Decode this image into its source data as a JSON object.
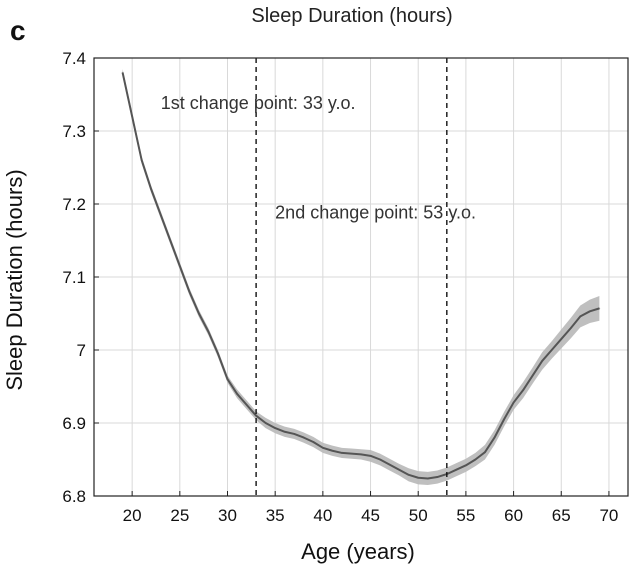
{
  "panel": {
    "letter": "c"
  },
  "chart_data": {
    "type": "line",
    "title": "Sleep Duration (hours)",
    "xlabel": "Age (years)",
    "ylabel": "Sleep Duration (hours)",
    "xlim": [
      16,
      72
    ],
    "ylim": [
      6.8,
      7.4
    ],
    "xticks": [
      20,
      25,
      30,
      35,
      40,
      45,
      50,
      55,
      60,
      65,
      70
    ],
    "xtick_labels": [
      "20",
      "25",
      "30",
      "35",
      "40",
      "45",
      "50",
      "55",
      "60",
      "65",
      "70"
    ],
    "yticks": [
      6.8,
      6.9,
      7.0,
      7.1,
      7.2,
      7.3,
      7.4
    ],
    "ytick_labels": [
      "6.8",
      "6.9",
      "7",
      "7.1",
      "7.2",
      "7.3",
      "7.4"
    ],
    "grid": true,
    "series": [
      {
        "x": [
          19,
          20,
          21,
          22,
          23,
          24,
          25,
          26,
          27,
          28,
          29,
          30,
          31,
          32,
          33,
          34,
          35,
          36,
          37,
          38,
          39,
          40,
          41,
          42,
          43,
          44,
          45,
          46,
          47,
          48,
          49,
          50,
          51,
          52,
          53,
          54,
          55,
          56,
          57,
          58,
          59,
          60,
          61,
          62,
          63,
          64,
          65,
          66,
          67,
          68,
          69
        ],
        "y": [
          7.38,
          7.32,
          7.26,
          7.22,
          7.185,
          7.15,
          7.115,
          7.08,
          7.05,
          7.025,
          6.995,
          6.96,
          6.94,
          6.925,
          6.91,
          6.9,
          6.893,
          6.888,
          6.885,
          6.88,
          6.874,
          6.866,
          6.862,
          6.859,
          6.858,
          6.857,
          6.855,
          6.85,
          6.843,
          6.836,
          6.829,
          6.825,
          6.824,
          6.826,
          6.83,
          6.836,
          6.842,
          6.85,
          6.86,
          6.88,
          6.905,
          6.928,
          6.945,
          6.965,
          6.985,
          7.0,
          7.015,
          7.03,
          7.046,
          7.053,
          7.057
        ],
        "ci": [
          0.005,
          0.005,
          0.005,
          0.005,
          0.005,
          0.005,
          0.005,
          0.005,
          0.005,
          0.005,
          0.005,
          0.005,
          0.006,
          0.006,
          0.006,
          0.007,
          0.007,
          0.007,
          0.007,
          0.007,
          0.007,
          0.007,
          0.007,
          0.007,
          0.007,
          0.007,
          0.008,
          0.008,
          0.008,
          0.008,
          0.009,
          0.009,
          0.009,
          0.009,
          0.009,
          0.009,
          0.009,
          0.009,
          0.01,
          0.01,
          0.01,
          0.01,
          0.011,
          0.011,
          0.012,
          0.012,
          0.013,
          0.014,
          0.015,
          0.016,
          0.017
        ]
      }
    ],
    "change_points": [
      {
        "x": 33,
        "label": "1st change point: 33 y.o.",
        "label_x": 23,
        "label_y": 7.33
      },
      {
        "x": 53,
        "label": "2nd change point: 53 y.o.",
        "label_x": 35,
        "label_y": 7.18
      }
    ],
    "colors": {
      "line": "#555555",
      "band": "#b8b8b8",
      "grid": "#d9d9d9"
    }
  }
}
